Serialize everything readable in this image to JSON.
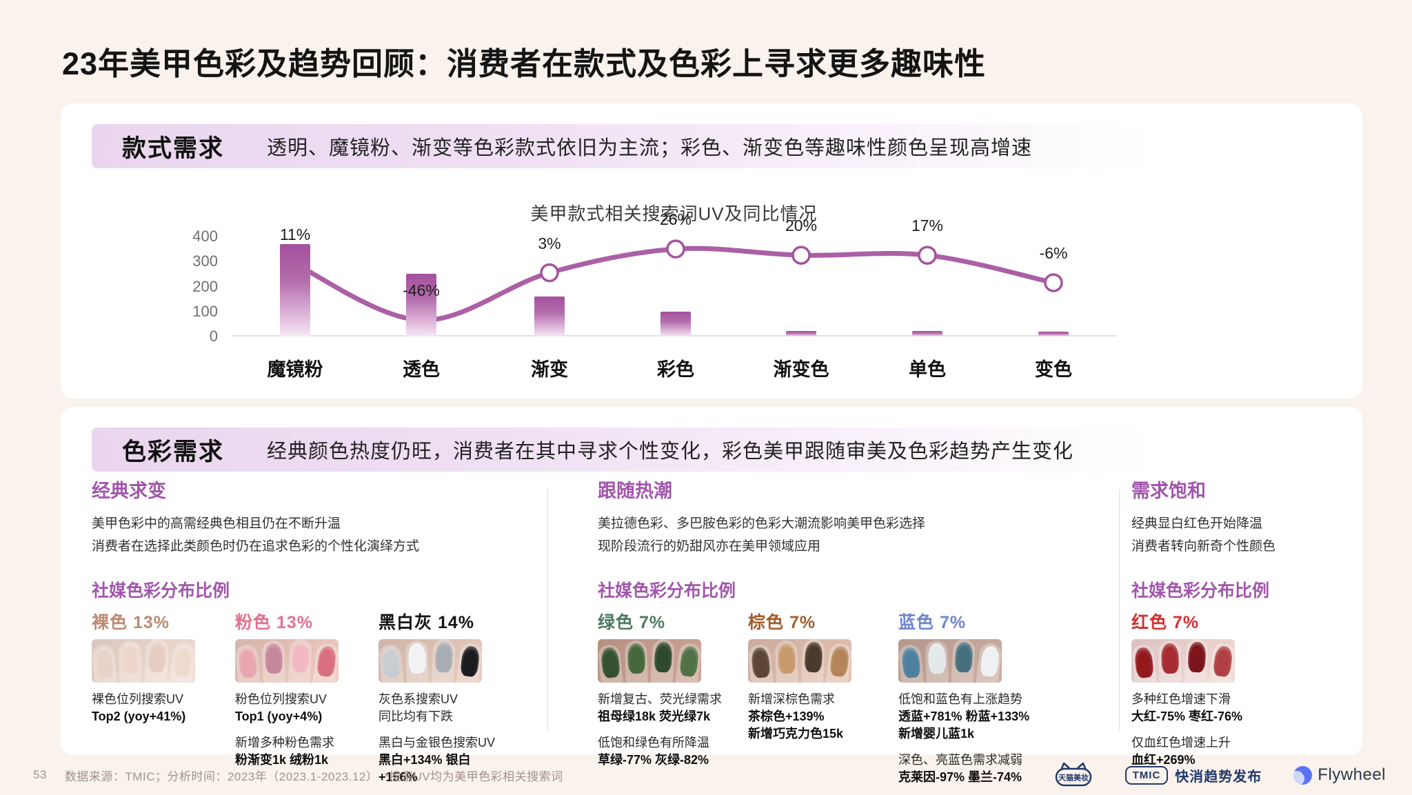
{
  "page": {
    "title": "23年美甲色彩及趋势回顾：消费者在款式及色彩上寻求更多趣味性",
    "page_number": "53",
    "footer_note": "数据来源：TMIC；分析时间：2023年（2023.1-2023.12）　*搜索UV均为美甲色彩相关搜索词"
  },
  "style_section": {
    "tag": "款式需求",
    "summary": "透明、魔镜粉、渐变等色彩款式依旧为主流；彩色、渐变色等趣味性颜色呈现高增速",
    "chart_data": {
      "type": "bar+line",
      "title": "美甲款式相关搜索词UV及同比情况",
      "categories": [
        "魔镜粉",
        "透色",
        "渐变",
        "彩色",
        "渐变色",
        "单色",
        "变色"
      ],
      "ylim": [
        0,
        400
      ],
      "yticks": [
        400,
        300,
        200,
        100,
        0
      ],
      "series": [
        {
          "name": "搜索UV(柱)",
          "type": "bar",
          "values": [
            370,
            250,
            160,
            100,
            22,
            22,
            18
          ]
        },
        {
          "name": "同比(线)",
          "type": "line",
          "labels": [
            "11%",
            "-46%",
            "3%",
            "26%",
            "20%",
            "17%",
            "-6%"
          ],
          "visual_y_on_uv_axis": [
            290,
            65,
            255,
            350,
            325,
            325,
            215
          ]
        }
      ],
      "colors": {
        "bar": "#a4539e",
        "line": "#a4539e"
      }
    }
  },
  "color_section": {
    "tag": "色彩需求",
    "summary": "经典颜色热度仍旺，消费者在其中寻求个性变化，彩色美甲跟随审美及色彩趋势产生变化",
    "columns": [
      {
        "heading": "经典求变",
        "desc": [
          "美甲色彩中的高需经典色相且仍在不断升温",
          "消费者在选择此类颜色时仍在追求色彩的个性化演绎方式"
        ],
        "subheading": "社媒色彩分布比例",
        "swatches": [
          {
            "name": "裸色",
            "pct": "13%",
            "label_color": "#bb8a72",
            "skin": "#f2ddd2",
            "nails": [
              "#e9d2c8",
              "#edd6cb",
              "#e6cdc2",
              "#f0dace"
            ],
            "notes": [
              [
                [
                  "裸色位列搜索UV",
                  false
                ],
                [
                  "Top2 (yoy+41%)",
                  true
                ]
              ]
            ]
          },
          {
            "name": "粉色",
            "pct": "13%",
            "label_color": "#e4708e",
            "skin": "#eec9bd",
            "nails": [
              "#e8a7b0",
              "#c6879b",
              "#f2b9c2",
              "#d9707d"
            ],
            "notes": [
              [
                [
                  "粉色位列搜索UV",
                  false
                ],
                [
                  "Top1 (yoy+4%)",
                  true
                ]
              ],
              [
                [
                  "新增多种粉色需求",
                  false
                ],
                [
                  "粉渐变1k 绒粉1k",
                  true
                ]
              ]
            ]
          },
          {
            "name": "黑白灰",
            "pct": "14%",
            "label_color": "#141414",
            "skin": "#e6c9bb",
            "nails": [
              "#c9ccd0",
              "#f1f2f4",
              "#a7adb3",
              "#1b1c1e"
            ],
            "notes": [
              [
                [
                  "灰色系搜索UV",
                  false
                ],
                [
                  "同比均有下跌",
                  false
                ]
              ],
              [
                [
                  "黑白与金银色搜索UV",
                  false
                ],
                [
                  "黑白+134% 银白+156%",
                  true
                ]
              ]
            ]
          }
        ]
      },
      {
        "heading": "跟随热潮",
        "desc": [
          "美拉德色彩、多巴胺色彩的色彩大潮流影响美甲色彩选择",
          "现阶段流行的奶甜风亦在美甲领域应用"
        ],
        "subheading": "社媒色彩分布比例",
        "swatches": [
          {
            "name": "绿色",
            "pct": "7%",
            "label_color": "#4e7a60",
            "skin": "#caa08f",
            "nails": [
              "#35502f",
              "#46663c",
              "#2e4a2b",
              "#507246"
            ],
            "notes": [
              [
                [
                  "新增复古、荧光绿需求",
                  false
                ],
                [
                  "祖母绿18k 荧光绿7k",
                  true
                ]
              ],
              [
                [
                  "低饱和绿色有所降温",
                  false
                ],
                [
                  "草绿-77% 灰绿-82%",
                  true
                ]
              ]
            ]
          },
          {
            "name": "棕色",
            "pct": "7%",
            "label_color": "#a25c2e",
            "skin": "#e3bfae",
            "nails": [
              "#5d4636",
              "#c79a6b",
              "#4a392c",
              "#b5845a"
            ],
            "notes": [
              [
                [
                  "新增深棕色需求",
                  false
                ],
                [
                  "茶棕色+139%",
                  true
                ],
                [
                  "新增巧克力色15k",
                  true
                ]
              ]
            ]
          },
          {
            "name": "蓝色",
            "pct": "7%",
            "label_color": "#6f85cf",
            "skin": "#c9a99c",
            "nails": [
              "#4f7f9f",
              "#e3e8ec",
              "#47707f",
              "#eef0f1"
            ],
            "notes": [
              [
                [
                  "低饱和蓝色有上涨趋势",
                  false
                ],
                [
                  "透蓝+781% 粉蓝+133%",
                  true
                ],
                [
                  "新增婴儿蓝1k",
                  true
                ]
              ],
              [
                [
                  "深色、亮蓝色需求减弱",
                  false
                ],
                [
                  "克莱因-97% 墨兰-74%",
                  true
                ]
              ]
            ]
          }
        ]
      },
      {
        "heading": "需求饱和",
        "desc": [
          "经典显白红色开始降温",
          "消费者转向新奇个性颜色"
        ],
        "subheading": "社媒色彩分布比例",
        "swatches": [
          {
            "name": "红色",
            "pct": "7%",
            "label_color": "#d42f2f",
            "skin": "#f3d8d5",
            "nails": [
              "#93191f",
              "#a62c31",
              "#7c151a",
              "#b04043"
            ],
            "notes": [
              [
                [
                  "多种红色增速下滑",
                  false
                ],
                [
                  "大红-75% 枣红-76%",
                  true
                ]
              ],
              [
                [
                  "仅血红色增速上升",
                  false
                ],
                [
                  "血红+269%",
                  true
                ]
              ]
            ]
          }
        ]
      }
    ]
  },
  "footer": {
    "logos": [
      {
        "name": "tmall-beauty",
        "label": "天猫美妆"
      },
      {
        "name": "tmic",
        "box": "TMIC",
        "label": "快消趋势发布"
      },
      {
        "name": "flywheel",
        "label": "Flywheel"
      }
    ]
  }
}
